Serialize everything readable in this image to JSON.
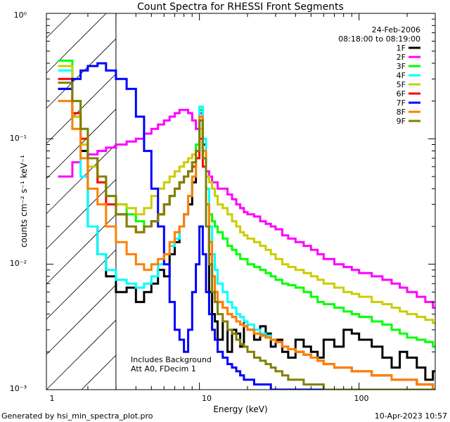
{
  "chart_data": {
    "type": "line",
    "title": "Count Spectra for RHESSI Front Segments",
    "xlabel": "Energy (keV)",
    "ylabel": "counts cm⁻² s⁻¹ keV⁻¹",
    "xscale": "log",
    "yscale": "log",
    "xlim": [
      1.1,
      300
    ],
    "ylim": [
      0.001,
      1.0
    ],
    "x_ticks": [
      "1",
      "10",
      "100"
    ],
    "y_ticks": [
      "10⁻³",
      "10⁻²",
      "10⁻¹",
      "10⁰"
    ],
    "legend_position": "top-right",
    "date": "24-Feb-2006",
    "time_range": "08:18:00 to 08:19:00",
    "annotations": [
      "Includes Background",
      "Att A0, FDecim 1"
    ],
    "hatched_region_max_kev": 3.0,
    "series": [
      {
        "name": "1F",
        "color": "#000000",
        "x": [
          1.3,
          1.6,
          1.8,
          2.0,
          2.3,
          2.6,
          3.0,
          3.5,
          4.0,
          4.5,
          5.0,
          5.5,
          6.0,
          6.5,
          7.0,
          7.5,
          8.0,
          8.5,
          9.0,
          9.5,
          10.0,
          10.5,
          11.0,
          11.5,
          12,
          12.5,
          13,
          14,
          15,
          16,
          17,
          18,
          19,
          20,
          22,
          24,
          26,
          28,
          30,
          33,
          36,
          40,
          45,
          50,
          55,
          60,
          70,
          80,
          90,
          100,
          120,
          140,
          160,
          180,
          200,
          230,
          260,
          290
        ],
        "values": [
          0.25,
          0.15,
          0.08,
          0.02,
          0.012,
          0.008,
          0.006,
          0.0065,
          0.005,
          0.006,
          0.007,
          0.009,
          0.008,
          0.012,
          0.015,
          0.02,
          0.025,
          0.03,
          0.045,
          0.08,
          0.17,
          0.09,
          0.02,
          0.006,
          0.004,
          0.0035,
          0.0025,
          0.0035,
          0.002,
          0.003,
          0.0028,
          0.0022,
          0.0035,
          0.003,
          0.0025,
          0.0032,
          0.0028,
          0.0022,
          0.0025,
          0.002,
          0.0018,
          0.0025,
          0.0022,
          0.002,
          0.0018,
          0.0025,
          0.0022,
          0.003,
          0.0028,
          0.0025,
          0.0022,
          0.0018,
          0.0015,
          0.002,
          0.0018,
          0.0015,
          0.0012,
          0.0014
        ]
      },
      {
        "name": "2F",
        "color": "#ff00ff",
        "x": [
          1.3,
          1.6,
          1.8,
          2.0,
          2.3,
          2.6,
          3.0,
          3.5,
          4.0,
          4.5,
          5.0,
          5.5,
          6.0,
          6.5,
          7.0,
          7.5,
          8.0,
          8.5,
          9.0,
          9.5,
          10.0,
          10.5,
          11.0,
          11.5,
          12,
          12.5,
          13,
          14,
          15,
          16,
          17,
          18,
          19,
          20,
          22,
          24,
          26,
          28,
          30,
          33,
          36,
          40,
          45,
          50,
          55,
          60,
          70,
          80,
          90,
          100,
          120,
          140,
          160,
          180,
          200,
          230,
          260,
          290
        ],
        "values": [
          0.05,
          0.065,
          0.07,
          0.075,
          0.08,
          0.085,
          0.09,
          0.095,
          0.1,
          0.11,
          0.12,
          0.13,
          0.14,
          0.15,
          0.16,
          0.17,
          0.17,
          0.16,
          0.14,
          0.12,
          0.16,
          0.08,
          0.055,
          0.05,
          0.045,
          0.045,
          0.04,
          0.04,
          0.036,
          0.033,
          0.03,
          0.028,
          0.026,
          0.025,
          0.024,
          0.022,
          0.021,
          0.02,
          0.019,
          0.017,
          0.016,
          0.015,
          0.014,
          0.013,
          0.012,
          0.011,
          0.01,
          0.0095,
          0.009,
          0.0085,
          0.008,
          0.0075,
          0.007,
          0.0065,
          0.006,
          0.0055,
          0.005,
          0.0045
        ]
      },
      {
        "name": "3F",
        "color": "#00ff00",
        "x": [
          1.3,
          1.6,
          1.8,
          2.0,
          2.3,
          2.6,
          3.0,
          3.5,
          4.0,
          4.5,
          5.0,
          5.5,
          6.0,
          6.5,
          7.0,
          7.5,
          8.0,
          8.5,
          9.0,
          9.5,
          10.0,
          10.5,
          11.0,
          11.5,
          12,
          12.5,
          13,
          14,
          15,
          16,
          17,
          18,
          19,
          20,
          22,
          24,
          26,
          28,
          30,
          33,
          36,
          40,
          45,
          50,
          55,
          60,
          70,
          80,
          90,
          100,
          120,
          140,
          160,
          180,
          200,
          230,
          260,
          290
        ],
        "values": [
          0.42,
          0.2,
          0.12,
          0.07,
          0.05,
          0.035,
          0.03,
          0.025,
          0.022,
          0.02,
          0.022,
          0.025,
          0.03,
          0.035,
          0.04,
          0.045,
          0.05,
          0.055,
          0.065,
          0.09,
          0.17,
          0.08,
          0.03,
          0.025,
          0.022,
          0.02,
          0.018,
          0.016,
          0.014,
          0.013,
          0.012,
          0.011,
          0.011,
          0.01,
          0.0095,
          0.009,
          0.0085,
          0.008,
          0.0075,
          0.007,
          0.0068,
          0.0065,
          0.006,
          0.0055,
          0.005,
          0.0048,
          0.0045,
          0.0042,
          0.004,
          0.0038,
          0.0035,
          0.0033,
          0.003,
          0.0028,
          0.0026,
          0.0025,
          0.0024,
          0.0022
        ]
      },
      {
        "name": "4F",
        "color": "#00ffff",
        "x": [
          1.3,
          1.6,
          1.8,
          2.0,
          2.3,
          2.6,
          3.0,
          3.5,
          4.0,
          4.5,
          5.0,
          5.5,
          6.0,
          6.5,
          7.0,
          7.5,
          8.0,
          8.5,
          9.0,
          9.5,
          10.0,
          10.5,
          11.0,
          11.5,
          12,
          12.5,
          13,
          14,
          15,
          16,
          17,
          18,
          19,
          20,
          22,
          24,
          26,
          28,
          30,
          33,
          36,
          40,
          45,
          50,
          55,
          60,
          70,
          80,
          90,
          100,
          120,
          140,
          160,
          180,
          200,
          230,
          260,
          290
        ],
        "values": [
          0.35,
          0.12,
          0.05,
          0.02,
          0.012,
          0.009,
          0.0075,
          0.007,
          0.0065,
          0.007,
          0.008,
          0.01,
          0.012,
          0.014,
          0.016,
          0.02,
          0.025,
          0.035,
          0.05,
          0.08,
          0.18,
          0.1,
          0.04,
          0.02,
          0.012,
          0.009,
          0.007,
          0.006,
          0.005,
          0.0045,
          0.004,
          0.0038,
          0.0035,
          0.0033,
          0.003,
          0.0028,
          0.0027,
          0.0025,
          0.0024,
          0.0022,
          0.0021,
          0.002,
          0.0019,
          0.0018,
          0.0017,
          0.0016,
          0.0015,
          0.0015,
          0.0014,
          0.0014,
          0.0013,
          0.0013,
          0.0012,
          0.0012,
          0.0012,
          0.0011,
          0.0011,
          0.001
        ]
      },
      {
        "name": "5F",
        "color": "#cccc00",
        "x": [
          1.3,
          1.6,
          1.8,
          2.0,
          2.3,
          2.6,
          3.0,
          3.5,
          4.0,
          4.5,
          5.0,
          5.5,
          6.0,
          6.5,
          7.0,
          7.5,
          8.0,
          8.5,
          9.0,
          9.5,
          10.0,
          10.5,
          11.0,
          11.5,
          12,
          12.5,
          13,
          14,
          15,
          16,
          17,
          18,
          19,
          20,
          22,
          24,
          26,
          28,
          30,
          33,
          36,
          40,
          45,
          50,
          55,
          60,
          70,
          80,
          90,
          100,
          120,
          140,
          160,
          180,
          200,
          230,
          260,
          290
        ],
        "values": [
          0.38,
          0.15,
          0.09,
          0.06,
          0.045,
          0.035,
          0.03,
          0.028,
          0.025,
          0.028,
          0.035,
          0.04,
          0.045,
          0.05,
          0.055,
          0.06,
          0.065,
          0.07,
          0.075,
          0.08,
          0.12,
          0.07,
          0.05,
          0.045,
          0.04,
          0.035,
          0.03,
          0.028,
          0.025,
          0.022,
          0.02,
          0.018,
          0.017,
          0.016,
          0.015,
          0.014,
          0.013,
          0.012,
          0.011,
          0.01,
          0.0095,
          0.009,
          0.0085,
          0.008,
          0.0075,
          0.007,
          0.0065,
          0.006,
          0.0058,
          0.0055,
          0.005,
          0.0048,
          0.0045,
          0.0042,
          0.004,
          0.0038,
          0.0036,
          0.0034
        ]
      },
      {
        "name": "6F",
        "color": "#ff0000",
        "x": [
          1.3,
          1.6,
          1.8,
          2.0,
          2.3,
          2.6,
          3.0,
          3.5,
          4.0,
          4.5,
          5.0,
          5.5,
          6.0,
          6.5,
          7.0,
          7.5,
          8.0,
          8.5,
          9.0,
          9.5,
          10.0,
          10.5,
          11.0,
          11.5,
          12,
          12.5,
          13,
          14,
          15,
          16,
          17,
          18,
          19,
          20,
          22,
          24,
          26,
          28,
          30,
          33,
          36,
          40,
          45,
          50,
          55,
          60,
          70,
          80,
          90,
          100,
          120,
          140,
          160,
          180,
          200,
          230,
          260,
          290
        ],
        "values": [
          0.3,
          0.16,
          0.1,
          0.07,
          0.045,
          0.03,
          0.025,
          0.02,
          0.018,
          0.02,
          0.022,
          0.025,
          0.03,
          0.035,
          0.04,
          0.045,
          0.05,
          0.055,
          0.06,
          0.07,
          0.1,
          0.06,
          0.02,
          0.012,
          0.008,
          0.006,
          0.005,
          0.0045,
          0.004,
          0.0038,
          0.0035,
          0.0033,
          0.0032,
          0.003,
          0.0028,
          0.0027,
          0.0026,
          0.0025,
          0.0024,
          0.0022,
          0.0021,
          0.002,
          0.0019,
          0.0018,
          0.0017,
          0.0016,
          0.0015,
          0.0015,
          0.0014,
          0.0014,
          0.0013,
          0.0013,
          0.0012,
          0.0012,
          0.0012,
          0.0011,
          0.0011,
          0.001
        ]
      },
      {
        "name": "7F",
        "color": "#0000ff",
        "x": [
          1.3,
          1.6,
          1.8,
          2.0,
          2.3,
          2.6,
          3.0,
          3.5,
          4.0,
          4.5,
          5.0,
          5.5,
          6.0,
          6.5,
          7.0,
          7.5,
          8.0,
          8.5,
          9.0,
          9.5,
          10.0,
          10.5,
          11.0,
          11.5,
          12,
          12.5,
          13,
          14,
          15,
          16,
          17,
          18,
          19,
          20,
          22,
          24,
          26,
          28,
          30,
          33,
          36,
          40,
          45,
          50,
          55,
          60,
          70,
          80,
          90,
          100,
          120,
          140,
          160,
          180,
          200,
          230,
          260,
          290
        ],
        "values": [
          0.25,
          0.3,
          0.35,
          0.38,
          0.4,
          0.35,
          0.3,
          0.25,
          0.15,
          0.08,
          0.04,
          0.02,
          0.01,
          0.005,
          0.003,
          0.0025,
          0.002,
          0.003,
          0.006,
          0.01,
          0.02,
          0.012,
          0.006,
          0.004,
          0.003,
          0.0025,
          0.002,
          0.0018,
          0.0016,
          0.0015,
          0.0014,
          0.0013,
          0.0012,
          0.0012,
          0.0011,
          0.0011,
          0.0011,
          0.001,
          0.001,
          0.001,
          0.001,
          0.001,
          0.001,
          0.001,
          0.001,
          0.001,
          0.001,
          0.001,
          0.001,
          0.001,
          0.001,
          0.001,
          0.001,
          0.001,
          0.001,
          0.001,
          0.001,
          0.001
        ]
      },
      {
        "name": "8F",
        "color": "#ff7f00",
        "x": [
          1.3,
          1.6,
          1.8,
          2.0,
          2.3,
          2.6,
          3.0,
          3.5,
          4.0,
          4.5,
          5.0,
          5.5,
          6.0,
          6.5,
          7.0,
          7.5,
          8.0,
          8.5,
          9.0,
          9.5,
          10.0,
          10.5,
          11.0,
          11.5,
          12,
          12.5,
          13,
          14,
          15,
          16,
          17,
          18,
          19,
          20,
          22,
          24,
          26,
          28,
          30,
          33,
          36,
          40,
          45,
          50,
          55,
          60,
          70,
          80,
          90,
          100,
          120,
          140,
          160,
          180,
          200,
          230,
          260,
          290
        ],
        "values": [
          0.2,
          0.12,
          0.07,
          0.04,
          0.03,
          0.02,
          0.015,
          0.012,
          0.01,
          0.009,
          0.01,
          0.011,
          0.012,
          0.015,
          0.018,
          0.02,
          0.025,
          0.035,
          0.05,
          0.08,
          0.15,
          0.08,
          0.03,
          0.015,
          0.008,
          0.006,
          0.005,
          0.0045,
          0.004,
          0.0038,
          0.0035,
          0.0033,
          0.0032,
          0.003,
          0.0028,
          0.0027,
          0.0026,
          0.0025,
          0.0024,
          0.0022,
          0.0021,
          0.002,
          0.0019,
          0.0018,
          0.0017,
          0.0016,
          0.0015,
          0.0015,
          0.0014,
          0.0014,
          0.0013,
          0.0013,
          0.0012,
          0.0012,
          0.0012,
          0.0011,
          0.0011,
          0.001
        ]
      },
      {
        "name": "9F",
        "color": "#808000",
        "x": [
          1.3,
          1.6,
          1.8,
          2.0,
          2.3,
          2.6,
          3.0,
          3.5,
          4.0,
          4.5,
          5.0,
          5.5,
          6.0,
          6.5,
          7.0,
          7.5,
          8.0,
          8.5,
          9.0,
          9.5,
          10.0,
          10.5,
          11.0,
          11.5,
          12,
          12.5,
          13,
          14,
          15,
          16,
          17,
          18,
          19,
          20,
          22,
          24,
          26,
          28,
          30,
          33,
          36,
          40,
          45,
          50,
          55,
          60,
          70,
          80,
          90,
          100,
          120,
          140,
          160,
          180,
          200,
          230,
          260,
          290
        ],
        "values": [
          0.28,
          0.2,
          0.12,
          0.07,
          0.05,
          0.035,
          0.025,
          0.02,
          0.018,
          0.02,
          0.022,
          0.025,
          0.03,
          0.035,
          0.04,
          0.045,
          0.05,
          0.055,
          0.065,
          0.08,
          0.14,
          0.07,
          0.02,
          0.01,
          0.006,
          0.005,
          0.004,
          0.0035,
          0.003,
          0.0028,
          0.0025,
          0.0023,
          0.0022,
          0.002,
          0.0018,
          0.0017,
          0.0016,
          0.0015,
          0.0014,
          0.0013,
          0.0012,
          0.0012,
          0.0011,
          0.0011,
          0.0011,
          0.001,
          0.001,
          0.001,
          0.001,
          0.001,
          0.001,
          0.001,
          0.001,
          0.001,
          0.001,
          0.001,
          0.001,
          0.001
        ]
      }
    ]
  },
  "footer": {
    "generated_by": "Generated by hsi_min_spectra_plot.pro",
    "timestamp": "10-Apr-2023 10:57"
  }
}
